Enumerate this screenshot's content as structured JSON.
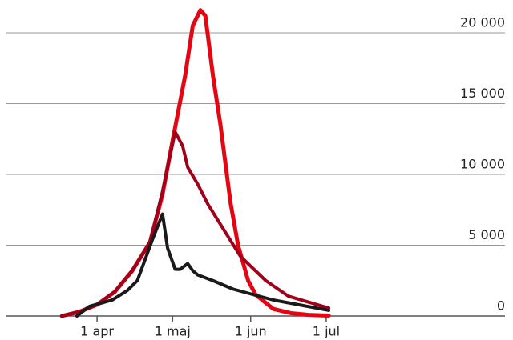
{
  "chart_data": {
    "type": "line",
    "xlim": [
      56,
      254
    ],
    "xticks": [
      {
        "value": 92,
        "label": "1 apr"
      },
      {
        "value": 122,
        "label": "1 maj"
      },
      {
        "value": 153,
        "label": "1 jun"
      },
      {
        "value": 183,
        "label": "1 jul"
      }
    ],
    "ylim": [
      0,
      22000
    ],
    "yticks": [
      0,
      {
        "value": 5000,
        "label": "5 000"
      },
      {
        "value": 10000,
        "label": "10 000"
      },
      {
        "value": 15000,
        "label": "15 000"
      },
      {
        "value": 20000,
        "label": "20 000"
      }
    ],
    "grid": true,
    "series": [
      {
        "color": "#e30613",
        "x": [
          78,
          85,
          92,
          99,
          106,
          113,
          118,
          122,
          127,
          130,
          133,
          135,
          138,
          141,
          145,
          148,
          152,
          155,
          162,
          169,
          176,
          184
        ],
        "values": [
          0,
          300,
          800,
          1700,
          3200,
          5200,
          8600,
          12400,
          17000,
          20500,
          21600,
          21200,
          17000,
          13500,
          8000,
          5000,
          2500,
          1500,
          500,
          200,
          80,
          30
        ]
      },
      {
        "color": "#a0001a",
        "x": [
          78,
          85,
          92,
          99,
          106,
          113,
          118,
          123,
          126,
          128,
          132,
          136,
          143,
          149,
          159,
          168,
          184
        ],
        "values": [
          0,
          300,
          800,
          1700,
          3200,
          5200,
          8800,
          13000,
          12000,
          10500,
          9300,
          7900,
          5900,
          4200,
          2500,
          1400,
          560
        ]
      },
      {
        "color": "#1a1a1a",
        "x": [
          84,
          89,
          98,
          104,
          108,
          114,
          118,
          120,
          123,
          125,
          128,
          130,
          132,
          138,
          146,
          162,
          184
        ],
        "values": [
          0,
          680,
          1130,
          1800,
          2500,
          5400,
          7200,
          4800,
          3300,
          3300,
          3700,
          3200,
          2900,
          2500,
          1900,
          1130,
          400
        ]
      }
    ]
  }
}
